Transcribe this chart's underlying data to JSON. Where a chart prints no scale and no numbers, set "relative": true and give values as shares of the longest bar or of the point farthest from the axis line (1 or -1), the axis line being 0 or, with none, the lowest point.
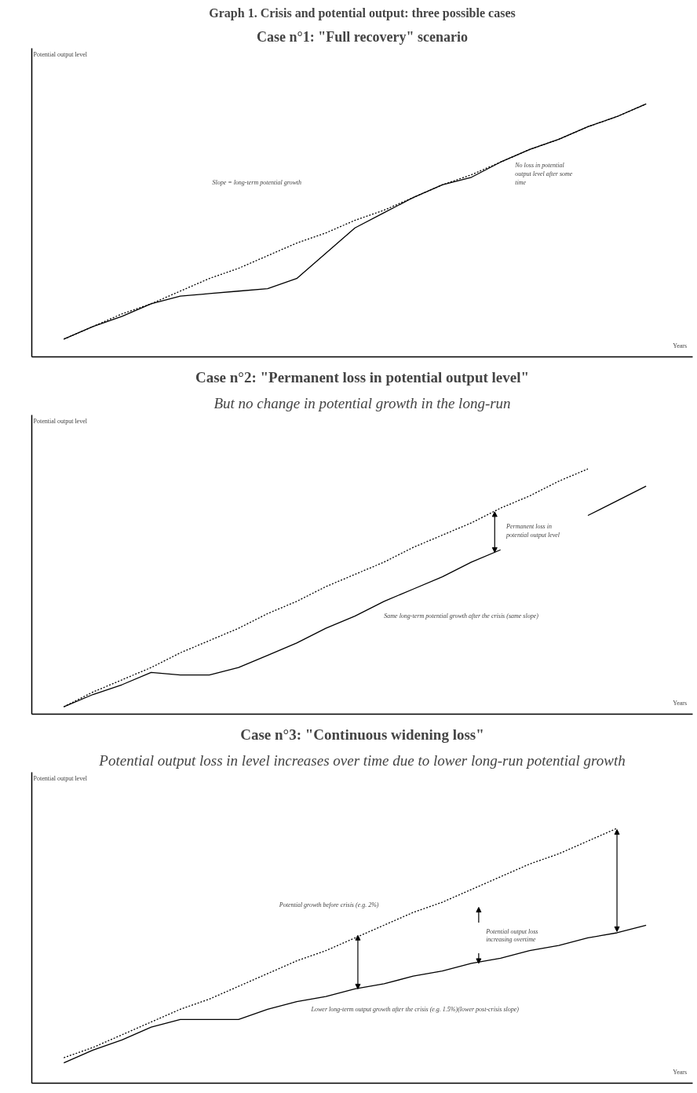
{
  "chart_data": [
    {
      "type": "line",
      "title": "Graph 1. Crisis and potential output: three possible cases",
      "subtitle": "Case n°1: \"Full recovery\" scenario",
      "xlabel": "Years",
      "ylabel": "Potential output level",
      "relative": true,
      "categories": [
        null,
        null,
        null,
        null,
        null,
        null,
        null,
        null,
        null,
        null,
        null,
        null,
        null,
        null,
        null,
        null,
        null,
        null,
        null,
        null,
        null
      ],
      "series": [
        {
          "color": "#000000",
          "line_style": "dashed",
          "values": [
            0.07,
            0.12,
            0.17,
            0.21,
            0.26,
            0.31,
            0.35,
            0.4,
            0.45,
            0.49,
            0.54,
            0.58,
            0.63,
            0.68,
            0.72,
            0.77,
            0.82,
            0.86,
            0.91,
            0.95,
            1.0
          ]
        },
        {
          "color": "#000000",
          "line_style": "solid",
          "values": [
            0.07,
            0.12,
            0.16,
            0.21,
            0.24,
            0.25,
            0.26,
            0.27,
            0.31,
            0.41,
            0.51,
            0.57,
            0.63,
            0.68,
            0.71,
            0.77,
            0.82,
            0.86,
            0.91,
            0.95,
            1.0
          ]
        }
      ],
      "annotations": [
        "Slope = long-term potential growth",
        "No loss in potential output level after some time"
      ]
    },
    {
      "type": "line",
      "title": "Case n°2: \"Permanent loss in potential output level\"",
      "subtitle": "But no change in potential growth in the long-run",
      "xlabel": "Years",
      "ylabel": "Potential output level",
      "relative": true,
      "categories": [
        null,
        null,
        null,
        null,
        null,
        null,
        null,
        null,
        null,
        null,
        null,
        null,
        null,
        null,
        null,
        null,
        null,
        null,
        null,
        null,
        null
      ],
      "series": [
        {
          "color": "#000000",
          "line_style": "dashed",
          "values": [
            0.03,
            0.09,
            0.14,
            0.19,
            0.25,
            0.3,
            0.35,
            0.41,
            0.46,
            0.52,
            0.57,
            0.62,
            0.68,
            0.73,
            0.78,
            0.84,
            0.89,
            0.95,
            1.0,
            null,
            null
          ]
        },
        {
          "color": "#000000",
          "line_style": "solid",
          "values": [
            0.03,
            0.08,
            0.12,
            0.17,
            0.16,
            0.16,
            0.19,
            0.24,
            0.29,
            0.35,
            0.4,
            0.46,
            0.51,
            0.56,
            0.62,
            0.67,
            null,
            null,
            0.81,
            0.87,
            0.93
          ]
        }
      ],
      "annotations": [
        "Permanent loss in potential output level",
        "Same long-term potential growth after the crisis (same slope)"
      ]
    },
    {
      "type": "line",
      "title": "Case n°3: \"Continuous widening loss\"",
      "subtitle": "Potential output loss in level increases over time due to lower long-run potential growth",
      "xlabel": "Years",
      "ylabel": "Potential output level",
      "relative": true,
      "categories": [
        null,
        null,
        null,
        null,
        null,
        null,
        null,
        null,
        null,
        null,
        null,
        null,
        null,
        null,
        null,
        null,
        null,
        null,
        null,
        null,
        null
      ],
      "series": [
        {
          "color": "#000000",
          "line_style": "dashed",
          "values": [
            0.1,
            0.14,
            0.19,
            0.24,
            0.29,
            0.33,
            0.38,
            0.43,
            0.48,
            0.52,
            0.57,
            0.62,
            0.67,
            0.71,
            0.76,
            0.81,
            0.86,
            0.9,
            0.95,
            1.0,
            null
          ]
        },
        {
          "color": "#000000",
          "line_style": "solid",
          "values": [
            0.08,
            0.13,
            0.17,
            0.22,
            0.25,
            0.25,
            0.25,
            0.29,
            0.32,
            0.34,
            0.37,
            0.39,
            0.42,
            0.44,
            0.47,
            0.49,
            0.52,
            0.54,
            0.57,
            0.59,
            0.62
          ]
        }
      ],
      "annotations": [
        "Potential growth before crisis (e.g. 2%)",
        "Potential output loss increasing overtime",
        "Lower long-term output growth after the crisis (e.g. 1.5%)(lower post-crisis slope)"
      ]
    }
  ]
}
